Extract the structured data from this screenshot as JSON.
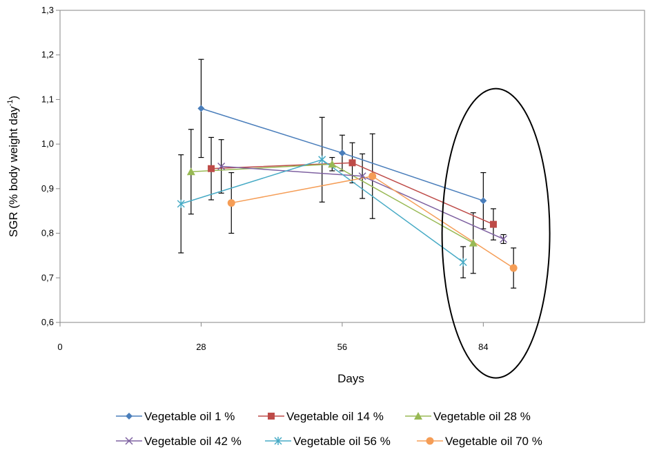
{
  "chart_data": {
    "type": "line",
    "title": "",
    "xlabel": "Days",
    "ylabel": "SGR (% body weight day-1)",
    "ylabel_main": "SGR (% body weight day",
    "ylabel_sup": "-1",
    "ylabel_tail": ")",
    "xlim": [
      0,
      116
    ],
    "ylim": [
      0.6,
      1.3
    ],
    "x_ticks": [
      0,
      28,
      56,
      84
    ],
    "x_tick_labels": [
      "0",
      "28",
      "56",
      "84"
    ],
    "y_ticks": [
      0.6,
      0.7,
      0.8,
      0.9,
      1.0,
      1.1,
      1.2,
      1.3
    ],
    "y_tick_labels": [
      "0,6",
      "0,7",
      "0,8",
      "0,9",
      "1,0",
      "1,1",
      "1,2",
      "1,3"
    ],
    "grid": false,
    "legend_position": "bottom",
    "annotation": "ellipse around the final (~day 84) measurements",
    "series": [
      {
        "name": "Vegetable oil 1 %",
        "color": "#4a7ebb",
        "marker": "diamond",
        "x": [
          28,
          56,
          84
        ],
        "y": [
          1.08,
          0.98,
          0.873
        ],
        "err": [
          0.11,
          0.04,
          0.063
        ]
      },
      {
        "name": "Vegetable oil 14 %",
        "color": "#be4b48",
        "marker": "square",
        "x": [
          30,
          58,
          86
        ],
        "y": [
          0.945,
          0.958,
          0.82
        ],
        "err": [
          0.07,
          0.045,
          0.035
        ]
      },
      {
        "name": "Vegetable oil 28 %",
        "color": "#98b954",
        "marker": "triangle",
        "x": [
          26,
          54,
          82
        ],
        "y": [
          0.938,
          0.955,
          0.778
        ],
        "err": [
          0.095,
          0.015,
          0.068
        ]
      },
      {
        "name": "Vegetable oil 42 %",
        "color": "#7d60a0",
        "marker": "x",
        "x": [
          32,
          60,
          88
        ],
        "y": [
          0.95,
          0.928,
          0.787
        ],
        "err": [
          0.06,
          0.05,
          0.01
        ]
      },
      {
        "name": "Vegetable oil 56 %",
        "color": "#46aac5",
        "marker": "asterisk",
        "x": [
          24,
          52,
          80
        ],
        "y": [
          0.866,
          0.965,
          0.735
        ],
        "err": [
          0.11,
          0.095,
          0.035
        ]
      },
      {
        "name": "Vegetable oil 70 %",
        "color": "#f59d56",
        "marker": "circle",
        "x": [
          34,
          62,
          90
        ],
        "y": [
          0.868,
          0.928,
          0.722
        ],
        "err": [
          0.068,
          0.095,
          0.045
        ]
      }
    ]
  }
}
